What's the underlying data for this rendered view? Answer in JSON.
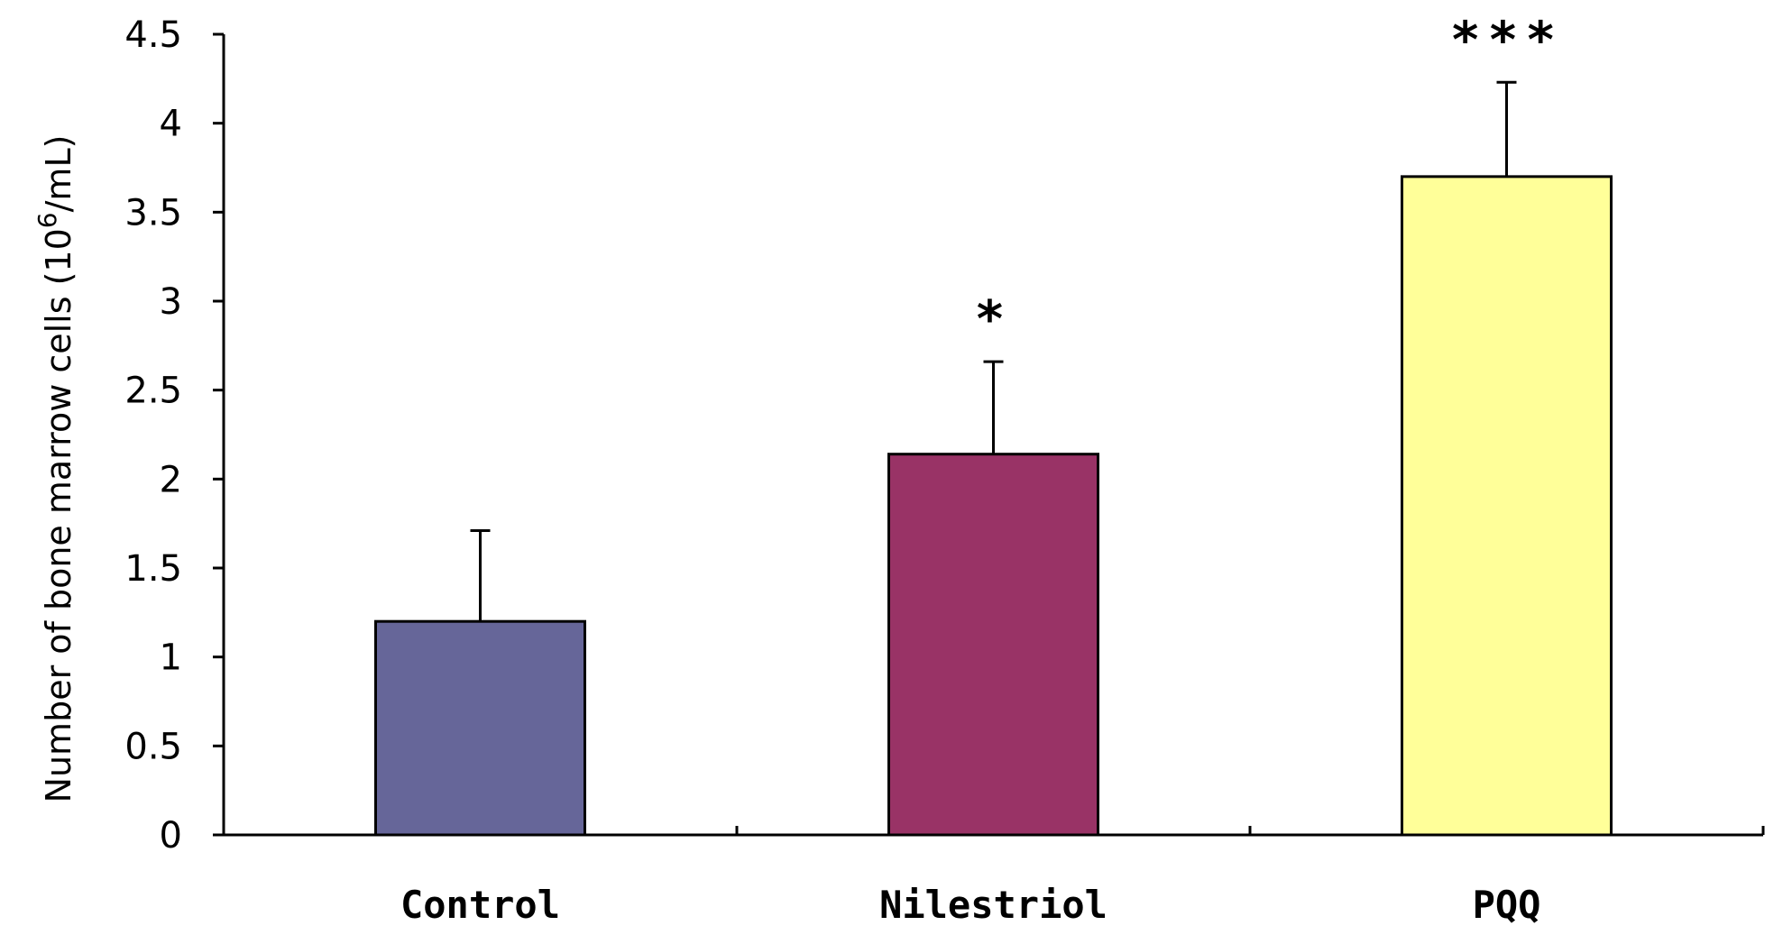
{
  "chart_data": {
    "type": "bar",
    "categories": [
      "Control",
      "Nilestriol",
      "PQQ"
    ],
    "values": [
      1.2,
      2.14,
      3.7
    ],
    "errors": [
      0.51,
      0.52,
      0.53
    ],
    "significance": [
      "",
      "*",
      "***"
    ],
    "colors": [
      "#666699",
      "#993366",
      "#ffff99"
    ],
    "title": "",
    "xlabel": "",
    "ylabel": "Number of bone marrow cells (10",
    "ylabel_superscript": "6",
    "ylabel_suffix": "/mL)",
    "ylim": [
      0,
      4.5
    ],
    "yticks": [
      "0",
      "0.5",
      "1",
      "1.5",
      "2",
      "2.5",
      "3",
      "3.5",
      "4",
      "4.5"
    ],
    "grid": false,
    "legend": "none"
  }
}
